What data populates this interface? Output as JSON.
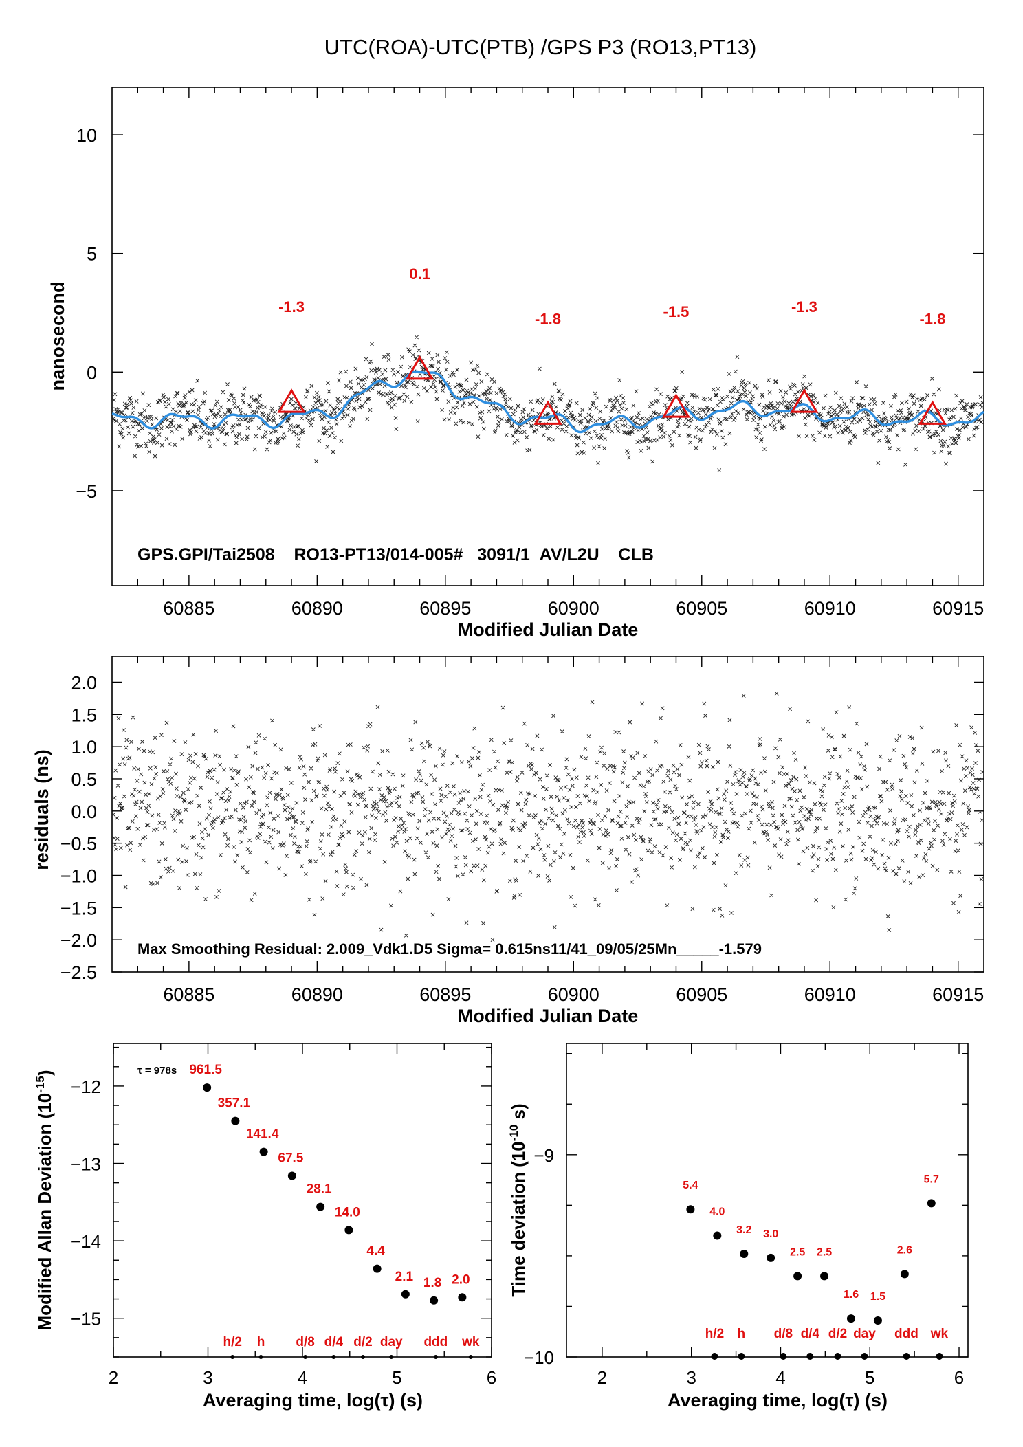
{
  "page": {
    "title": "UTC(ROA)-UTC(PTB)  /GPS  P3  (RO13,PT13)"
  },
  "colors": {
    "scatter": "#222222",
    "smooth_line": "#2f8fe0",
    "triangle": "#e01010",
    "annotation": "#e01010",
    "axis": "#000000"
  },
  "chart_data": [
    {
      "id": "top",
      "type": "scatter",
      "title": "UTC(ROA)-UTC(PTB)  /GPS  P3  (RO13,PT13)",
      "xlabel": "Modified Julian Date",
      "ylabel": "nanosecond",
      "xlim": [
        60882,
        60916
      ],
      "ylim": [
        -9,
        12
      ],
      "xticks": [
        "60885",
        "60890",
        "60895",
        "60900",
        "60905",
        "60910",
        "60915"
      ],
      "yticks": [
        "−5",
        "0",
        "5",
        "10"
      ],
      "info_text": "GPS.GPI/Tai2508__RO13-PT13/014-005#_  3091/1_AV/L2U__CLB__________",
      "series": [
        {
          "kind": "scatter",
          "marker": "x",
          "n_points": 3456
        },
        {
          "kind": "line",
          "description": "smoothing"
        }
      ],
      "markers": [
        {
          "x": 60889,
          "y": -1.3,
          "label": "-1.3"
        },
        {
          "x": 60894,
          "y": 0.1,
          "label": "0.1"
        },
        {
          "x": 60899,
          "y": -1.8,
          "label": "-1.8"
        },
        {
          "x": 60904,
          "y": -1.5,
          "label": "-1.5"
        },
        {
          "x": 60909,
          "y": -1.3,
          "label": "-1.3"
        },
        {
          "x": 60914,
          "y": -1.8,
          "label": "-1.8"
        }
      ]
    },
    {
      "id": "residuals",
      "type": "scatter",
      "xlabel": "Modified Julian Date",
      "ylabel": "residuals (ns)",
      "xlim": [
        60882,
        60916
      ],
      "ylim": [
        -2.5,
        2.4
      ],
      "xticks": [
        "60885",
        "60890",
        "60895",
        "60900",
        "60905",
        "60910",
        "60915"
      ],
      "yticks": [
        "2.0",
        "1.5",
        "1.0",
        "0.5",
        "0.0",
        "−0.5",
        "−1.0",
        "−1.5",
        "−2.0",
        "−2.5"
      ],
      "info_text": "Max Smoothing Residual: 2.009_Vdk1.D5  Sigma= 0.615ns11/41_09/05/25Mn_____-1.579",
      "series": [
        {
          "kind": "scatter",
          "marker": "x",
          "sigma": 0.615,
          "n_points": 3456
        }
      ]
    },
    {
      "id": "mdev",
      "type": "scatter",
      "xlabel": "Averaging time, log(τ) (s)",
      "ylabel_main": "Modified Allan Deviation (10",
      "ylabel_exp": "-15",
      "ylabel_end": ")",
      "xlim": [
        2,
        6
      ],
      "ylim": [
        -15.5,
        -11.45
      ],
      "xticks": [
        "2",
        "3",
        "4",
        "5",
        "6"
      ],
      "yticks": [
        "−12",
        "−13",
        "−14",
        "−15"
      ],
      "tau_label": "τ = 978s",
      "points": [
        {
          "x": 2.99,
          "y": -12.02,
          "label": "961.5"
        },
        {
          "x": 3.29,
          "y": -12.45,
          "label": "357.1"
        },
        {
          "x": 3.59,
          "y": -12.85,
          "label": "141.4"
        },
        {
          "x": 3.89,
          "y": -13.16,
          "label": "67.5"
        },
        {
          "x": 4.19,
          "y": -13.56,
          "label": "28.1"
        },
        {
          "x": 4.49,
          "y": -13.86,
          "label": "14.0"
        },
        {
          "x": 4.79,
          "y": -14.36,
          "label": "4.4"
        },
        {
          "x": 5.09,
          "y": -14.69,
          "label": "2.1"
        },
        {
          "x": 5.39,
          "y": -14.77,
          "label": "1.8"
        },
        {
          "x": 5.69,
          "y": -14.73,
          "label": "2.0"
        }
      ],
      "time_markers": [
        {
          "x": 3.26,
          "label": "h/2"
        },
        {
          "x": 3.56,
          "label": "h"
        },
        {
          "x": 4.03,
          "label": "d/8"
        },
        {
          "x": 4.33,
          "label": "d/4"
        },
        {
          "x": 4.64,
          "label": "d/2"
        },
        {
          "x": 4.94,
          "label": "day"
        },
        {
          "x": 5.41,
          "label": "ddd"
        },
        {
          "x": 5.78,
          "label": "wk"
        }
      ]
    },
    {
      "id": "tdev",
      "type": "scatter",
      "xlabel": "Averaging time, log(τ) (s)",
      "ylabel_main": "Time deviation (10",
      "ylabel_exp": "-10",
      "ylabel_end": " s)",
      "xlim": [
        1.6,
        6.1
      ],
      "ylim": [
        -10,
        -8.45
      ],
      "xticks": [
        "2",
        "3",
        "4",
        "5",
        "6"
      ],
      "yticks": [
        "−9",
        "−10"
      ],
      "points": [
        {
          "x": 2.99,
          "y": -9.27,
          "label": "5.4"
        },
        {
          "x": 3.29,
          "y": -9.4,
          "label": "4.0"
        },
        {
          "x": 3.59,
          "y": -9.49,
          "label": "3.2"
        },
        {
          "x": 3.89,
          "y": -9.51,
          "label": "3.0"
        },
        {
          "x": 4.19,
          "y": -9.6,
          "label": "2.5"
        },
        {
          "x": 4.49,
          "y": -9.6,
          "label": "2.5"
        },
        {
          "x": 4.79,
          "y": -9.81,
          "label": "1.6"
        },
        {
          "x": 5.09,
          "y": -9.82,
          "label": "1.5"
        },
        {
          "x": 5.39,
          "y": -9.59,
          "label": "2.6"
        },
        {
          "x": 5.69,
          "y": -9.24,
          "label": "5.7"
        }
      ],
      "time_markers": [
        {
          "x": 3.26,
          "label": "h/2"
        },
        {
          "x": 3.56,
          "label": "h"
        },
        {
          "x": 4.03,
          "label": "d/8"
        },
        {
          "x": 4.33,
          "label": "d/4"
        },
        {
          "x": 4.64,
          "label": "d/2"
        },
        {
          "x": 4.94,
          "label": "day"
        },
        {
          "x": 5.41,
          "label": "ddd"
        },
        {
          "x": 5.78,
          "label": "wk"
        }
      ]
    }
  ]
}
